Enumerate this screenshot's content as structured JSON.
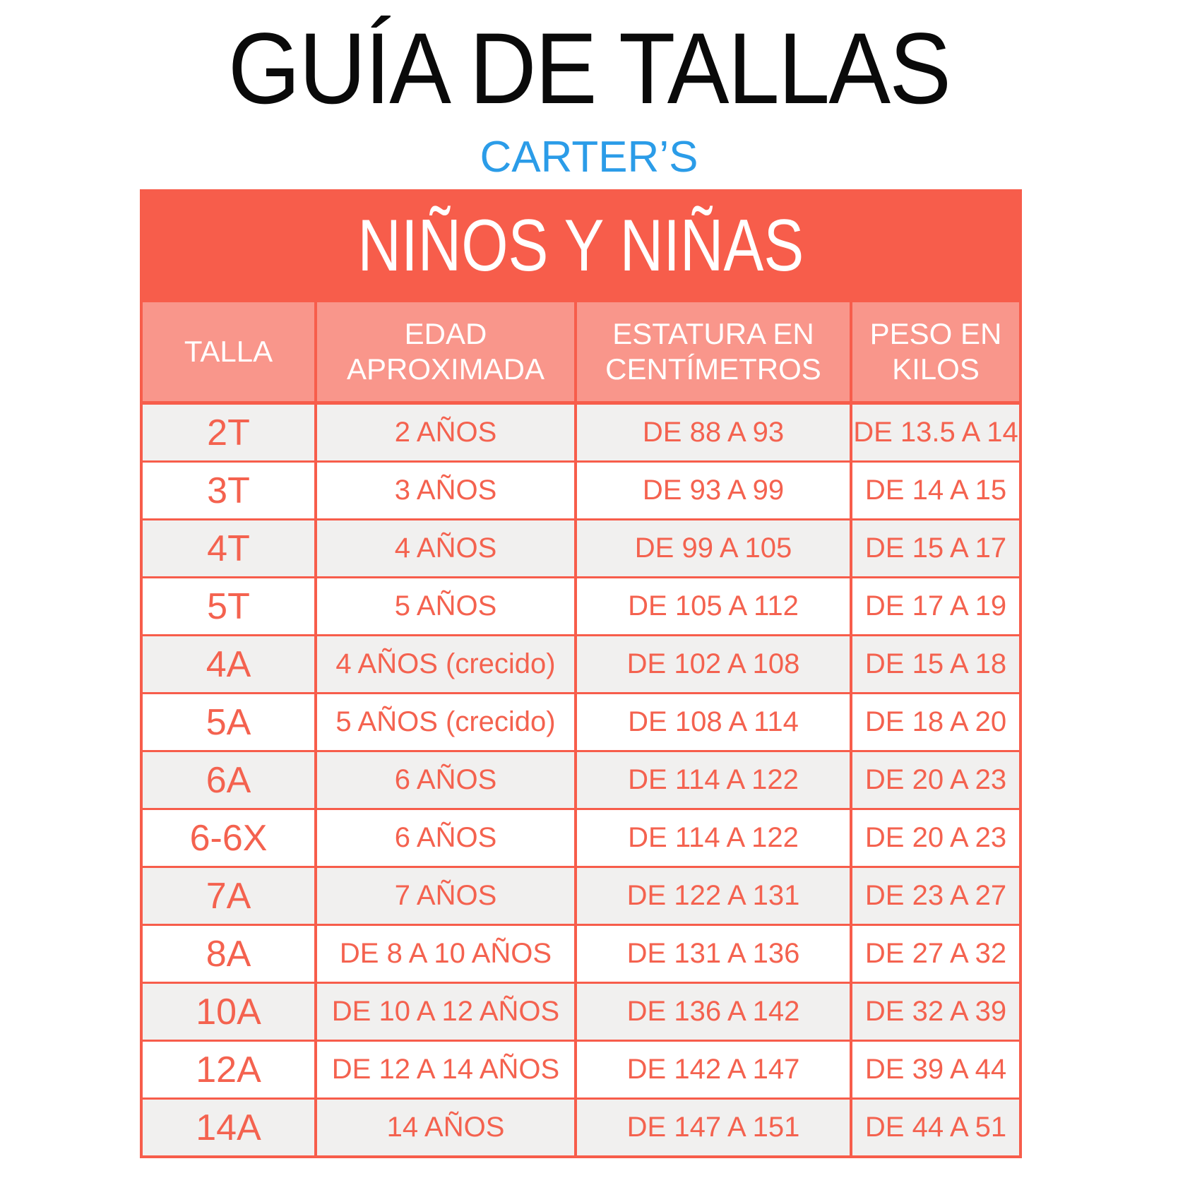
{
  "page": {
    "title": "GUÍA DE TALLAS",
    "brand": "CARTER’S"
  },
  "table": {
    "banner": "NIÑOS Y NIÑAS",
    "columns": [
      "TALLA",
      "EDAD APROXIMADA",
      "ESTATURA EN CENTÍMETROS",
      "PESO EN KILOS"
    ],
    "rows": [
      [
        "2T",
        "2 AÑOS",
        "DE 88 A 93",
        "DE 13.5 A 14"
      ],
      [
        "3T",
        "3 AÑOS",
        "DE 93 A 99",
        "DE 14 A 15"
      ],
      [
        "4T",
        "4 AÑOS",
        "DE 99 A 105",
        "DE 15 A 17"
      ],
      [
        "5T",
        "5 AÑOS",
        "DE 105 A 112",
        "DE 17 A 19"
      ],
      [
        "4A",
        "4 AÑOS (crecido)",
        "DE 102 A 108",
        "DE 15 A 18"
      ],
      [
        "5A",
        "5 AÑOS (crecido)",
        "DE 108 A 114",
        "DE 18 A 20"
      ],
      [
        "6A",
        "6 AÑOS",
        "DE 114 A 122",
        "DE 20 A 23"
      ],
      [
        "6-6X",
        "6 AÑOS",
        "DE 114 A 122",
        "DE 20 A 23"
      ],
      [
        "7A",
        "7 AÑOS",
        "DE 122 A 131",
        "DE 23 A 27"
      ],
      [
        "8A",
        "DE 8 A 10 AÑOS",
        "DE 131 A 136",
        "DE 27 A 32"
      ],
      [
        "10A",
        "DE 10 A 12 AÑOS",
        "DE 136 A 142",
        "DE 32 A 39"
      ],
      [
        "12A",
        "DE 12 A 14 AÑOS",
        "DE 142 A 147",
        "DE 39 A 44"
      ],
      [
        "14A",
        "14 AÑOS",
        "DE 147 A 151",
        "DE 44 A 51"
      ]
    ]
  },
  "colors": {
    "accent_red": "#F75D4B",
    "header_salmon": "#F9968B",
    "cell_coral": "#F4624F",
    "row_gray": "#F1F0EF",
    "row_white": "#FFFFFF",
    "brand_blue": "#2B9CE8",
    "title_black": "#0A0A0A",
    "page_bg": "#FFFFFF"
  },
  "chart_data": {
    "type": "table",
    "title": "GUÍA DE TALLAS",
    "subtitle": "CARTER’S",
    "section": "NIÑOS Y NIÑAS",
    "columns": [
      "TALLA",
      "EDAD APROXIMADA",
      "ESTATURA EN CENTÍMETROS",
      "PESO EN KILOS"
    ],
    "rows": [
      [
        "2T",
        "2 AÑOS",
        "DE 88 A 93",
        "DE 13.5 A 14"
      ],
      [
        "3T",
        "3 AÑOS",
        "DE 93 A 99",
        "DE 14 A 15"
      ],
      [
        "4T",
        "4 AÑOS",
        "DE 99 A 105",
        "DE 15 A 17"
      ],
      [
        "5T",
        "5 AÑOS",
        "DE 105 A 112",
        "DE 17 A 19"
      ],
      [
        "4A",
        "4 AÑOS (crecido)",
        "DE 102 A 108",
        "DE 15 A 18"
      ],
      [
        "5A",
        "5 AÑOS (crecido)",
        "DE 108 A 114",
        "DE 18 A 20"
      ],
      [
        "6A",
        "6 AÑOS",
        "DE 114 A 122",
        "DE 20 A 23"
      ],
      [
        "6-6X",
        "6 AÑOS",
        "DE 114 A 122",
        "DE 20 A 23"
      ],
      [
        "7A",
        "7 AÑOS",
        "DE 122 A 131",
        "DE 23 A 27"
      ],
      [
        "8A",
        "DE 8 A 10 AÑOS",
        "DE 131 A 136",
        "DE 27 A 32"
      ],
      [
        "10A",
        "DE 10 A 12 AÑOS",
        "DE 136 A 142",
        "DE 32 A 39"
      ],
      [
        "12A",
        "DE 12 A 14 AÑOS",
        "DE 142 A 147",
        "DE 39 A 44"
      ],
      [
        "14A",
        "14 AÑOS",
        "DE 147 A 151",
        "DE 44 A 51"
      ]
    ],
    "layout": {
      "height_unit": "centímetros",
      "weight_unit": "kilos",
      "row_striping": "gray/white alternating starting gray",
      "grid": "coral-red lines"
    }
  }
}
